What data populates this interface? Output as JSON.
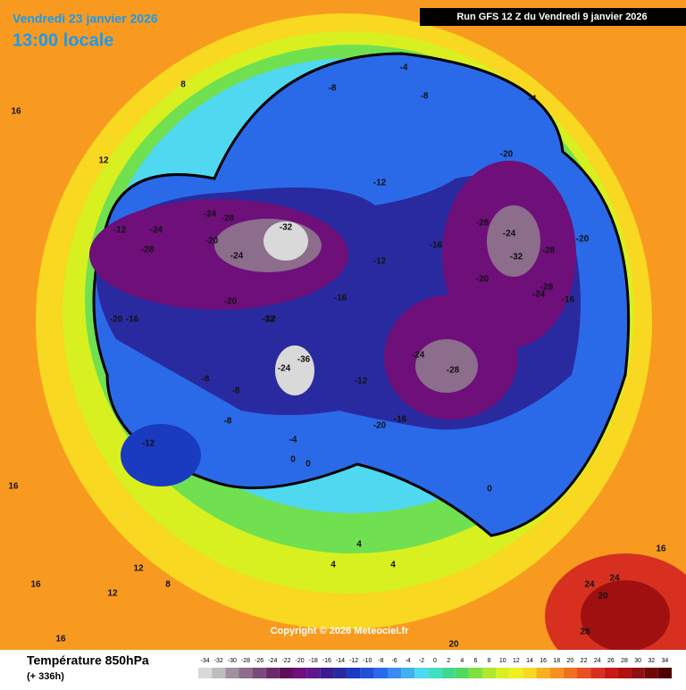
{
  "header": {
    "date": "Vendredi 23 janvier 2026",
    "time": "13:00 locale",
    "run": "Run GFS 12 Z du Vendredi 9 janvier 2026"
  },
  "map": {
    "labels": [
      -28,
      -24,
      -24,
      -28,
      -32,
      -20,
      -24,
      -20,
      -16,
      -20,
      -12,
      -12,
      -16,
      -12,
      -8,
      -8,
      -8,
      -12,
      -16,
      -20,
      -28,
      -24,
      -28,
      -32,
      -20,
      -28,
      -24,
      -20,
      -16,
      -24,
      -28,
      -12,
      -16,
      -20,
      -36,
      -24,
      -8,
      -4,
      -4,
      -8,
      -12,
      -12,
      -4,
      0,
      0,
      0,
      4,
      4,
      4,
      8,
      8,
      12,
      12,
      12,
      16,
      16,
      16,
      16,
      20,
      24,
      24,
      28,
      20,
      16
    ]
  },
  "copyright": "Copyright © 2026 Meteociel.fr",
  "legend": {
    "title": "Température 850hPa",
    "subtitle": "(+ 336h)",
    "ticks": [
      -34,
      -32,
      -30,
      -28,
      -26,
      -24,
      -22,
      -20,
      -18,
      -16,
      -14,
      -12,
      -10,
      -8,
      -6,
      -4,
      -2,
      0,
      2,
      4,
      6,
      8,
      10,
      12,
      14,
      16,
      18,
      20,
      22,
      24,
      26,
      28,
      30,
      32,
      34
    ],
    "colors": [
      "#d9d9d9",
      "#bdbdbd",
      "#a090a0",
      "#8c6d8c",
      "#7a4a7a",
      "#6a2a6a",
      "#5c105c",
      "#6e0f7a",
      "#5a1a8c",
      "#3a1a8c",
      "#2a2aa0",
      "#1a3ac0",
      "#2050d8",
      "#2a6ae8",
      "#3a8af0",
      "#40b0f0",
      "#50d8f0",
      "#40e0c0",
      "#40d890",
      "#50d860",
      "#80e040",
      "#b0e830",
      "#d8f020",
      "#f0f020",
      "#f8d820",
      "#f8b020",
      "#f89020",
      "#f07020",
      "#e85020",
      "#d83020",
      "#c81818",
      "#b01010",
      "#901010",
      "#700808",
      "#500000"
    ]
  }
}
